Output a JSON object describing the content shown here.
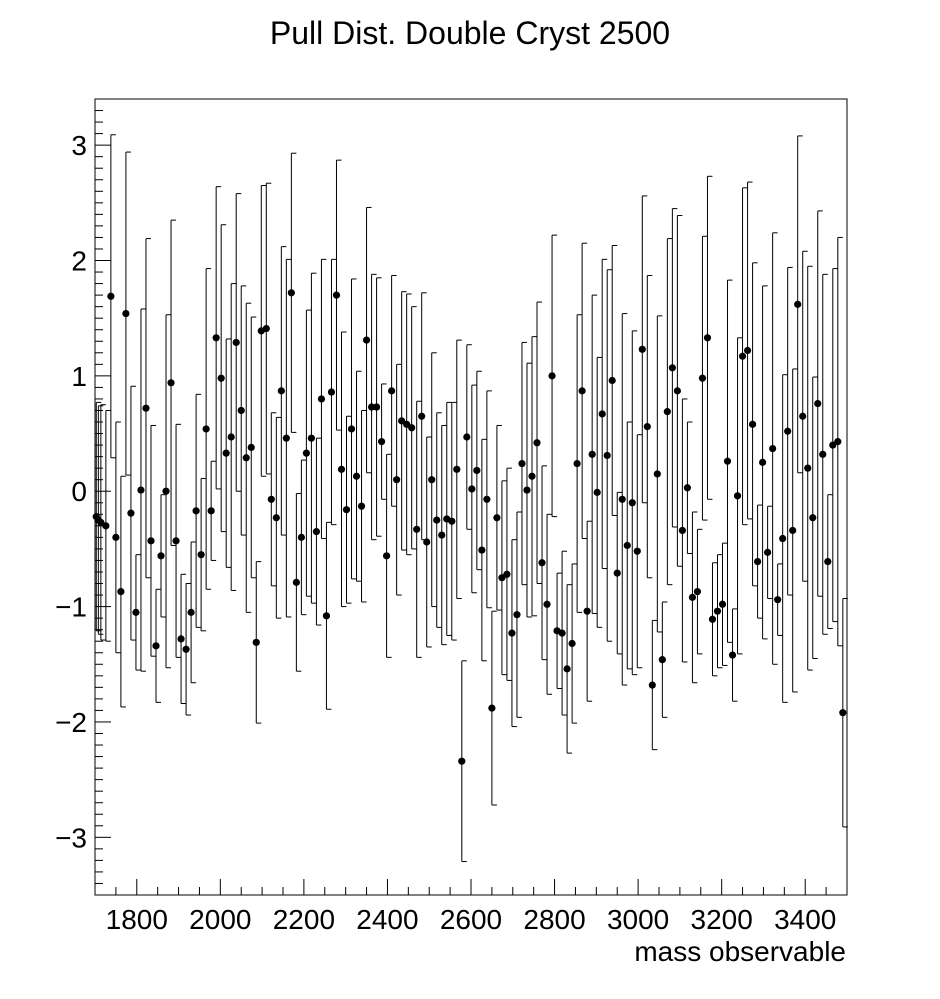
{
  "chart_data": {
    "type": "scatter",
    "title": "Pull Dist. Double Cryst 2500",
    "xlabel": "mass observable",
    "ylabel": "",
    "xlim": [
      1700,
      3500
    ],
    "ylim": [
      -3.5,
      3.4
    ],
    "x_ticks": [
      1800,
      2000,
      2200,
      2400,
      2600,
      2800,
      3000,
      3200,
      3400
    ],
    "y_ticks": [
      -3,
      -2,
      -1,
      0,
      1,
      2,
      3
    ],
    "x_tick_labels": [
      "1800",
      "2000",
      "2200",
      "2400",
      "2600",
      "2800",
      "3000",
      "3200",
      "3400"
    ],
    "y_tick_labels": [
      "−3",
      "−2",
      "−1",
      "0",
      "1",
      "2",
      "3"
    ],
    "grid": false,
    "legend": "none",
    "marker_color": "#000000",
    "error_bars": "y (±1 approx)",
    "series": [
      {
        "x": [
          1703,
          1708,
          1714,
          1726,
          1738,
          1750,
          1762,
          1774,
          1786,
          1798,
          1810,
          1822,
          1834,
          1846,
          1858,
          1870,
          1882,
          1894,
          1906,
          1918,
          1930,
          1942,
          1954,
          1966,
          1978,
          1990,
          2002,
          2014,
          2026,
          2038,
          2050,
          2062,
          2074,
          2086,
          2098,
          2110,
          2122,
          2134,
          2146,
          2158,
          2170,
          2182,
          2194,
          2206,
          2218,
          2230,
          2242,
          2254,
          2266,
          2278,
          2290,
          2302,
          2314,
          2326,
          2338,
          2350,
          2362,
          2374,
          2386,
          2398,
          2410,
          2422,
          2434,
          2446,
          2458,
          2470,
          2482,
          2494,
          2506,
          2518,
          2530,
          2542,
          2554,
          2566,
          2578,
          2590,
          2602,
          2614,
          2626,
          2638,
          2650,
          2662,
          2674,
          2686,
          2698,
          2710,
          2722,
          2734,
          2746,
          2758,
          2770,
          2782,
          2794,
          2806,
          2818,
          2830,
          2842,
          2854,
          2866,
          2878,
          2890,
          2902,
          2914,
          2926,
          2938,
          2950,
          2962,
          2974,
          2986,
          2998,
          3010,
          3022,
          3034,
          3046,
          3058,
          3070,
          3082,
          3094,
          3106,
          3118,
          3130,
          3142,
          3154,
          3166,
          3178,
          3190,
          3202,
          3214,
          3226,
          3238,
          3250,
          3262,
          3274,
          3286,
          3298,
          3310,
          3322,
          3334,
          3346,
          3358,
          3370,
          3382,
          3394,
          3406,
          3418,
          3430,
          3442,
          3454,
          3466,
          3478,
          3490
        ],
        "y": [
          -0.22,
          -0.25,
          -0.27,
          -0.3,
          1.69,
          -0.4,
          -0.87,
          1.54,
          -0.19,
          -1.05,
          0.01,
          0.72,
          -0.43,
          -1.34,
          -0.56,
          0.0,
          0.94,
          -0.43,
          -1.28,
          -1.37,
          -1.05,
          -0.17,
          -0.55,
          0.54,
          -0.17,
          1.33,
          0.98,
          0.33,
          0.47,
          1.29,
          0.7,
          0.29,
          0.38,
          -1.31,
          1.39,
          1.41,
          -0.07,
          -0.23,
          0.87,
          0.46,
          1.72,
          -0.79,
          -0.4,
          0.33,
          0.46,
          -0.35,
          0.8,
          -1.08,
          0.86,
          1.7,
          0.19,
          -0.16,
          0.54,
          0.13,
          -0.13,
          1.31,
          0.73,
          0.73,
          0.43,
          -0.56,
          0.87,
          0.1,
          0.61,
          0.58,
          0.55,
          -0.33,
          0.65,
          -0.44,
          0.1,
          -0.25,
          -0.38,
          -0.24,
          -0.26,
          0.19,
          -2.34,
          0.47,
          0.02,
          0.18,
          -0.51,
          -0.07,
          -1.88,
          -0.23,
          -0.75,
          -0.72,
          -1.23,
          -1.07,
          0.24,
          0.01,
          0.13,
          0.42,
          -0.62,
          -0.98,
          1.0,
          -1.21,
          -1.23,
          -1.54,
          -1.32,
          0.24,
          0.87,
          -1.04,
          0.32,
          -0.01,
          0.67,
          0.31,
          0.96,
          -0.71,
          -0.07,
          -0.47,
          -0.1,
          -0.52,
          1.23,
          0.56,
          -1.68,
          0.15,
          -1.46,
          0.69,
          1.07,
          0.87,
          -0.34,
          0.03,
          -0.92,
          -0.87,
          0.98,
          1.33,
          -1.11,
          -1.04,
          -0.98,
          0.26,
          -1.42,
          -0.04,
          1.17,
          1.22,
          0.58,
          -0.61,
          0.25,
          -0.53,
          0.37,
          -0.94,
          -0.41,
          0.52,
          -0.34,
          1.62,
          0.65,
          0.2,
          -0.23,
          0.76,
          0.32,
          -0.61,
          0.4,
          0.43,
          -1.92
        ],
        "err": [
          0.99,
          0.99,
          1.02,
          1.0,
          1.4,
          1.0,
          1.0,
          1.4,
          1.1,
          0.5,
          1.57,
          1.47,
          1.0,
          0.49,
          0.53,
          1.53,
          1.41,
          1.01,
          0.56,
          0.57,
          0.61,
          1.01,
          0.66,
          1.39,
          0.43,
          1.31,
          1.33,
          0.99,
          1.33,
          1.29,
          1.08,
          1.34,
          1.13,
          0.7,
          1.26,
          1.26,
          0.75,
          0.87,
          1.25,
          1.55,
          1.21,
          0.77,
          0.67,
          1.24,
          1.43,
          0.81,
          1.21,
          0.81,
          1.15,
          1.17,
          1.19,
          0.81,
          1.3,
          0.91,
          0.83,
          1.15,
          1.15,
          1.12,
          0.5,
          0.88,
          1.0,
          1.0,
          1.12,
          1.13,
          1.05,
          1.11,
          1.07,
          0.91,
          1.1,
          0.93,
          0.95,
          1.01,
          1.03,
          1.12,
          0.87,
          0.8,
          0.9,
          0.86,
          0.96,
          0.94,
          0.84,
          0.8,
          0.84,
          0.92,
          0.81,
          0.89,
          1.05,
          1.1,
          1.21,
          1.22,
          0.84,
          0.78,
          1.22,
          0.5,
          0.71,
          0.73,
          0.69,
          1.29,
          1.28,
          0.78,
          1.38,
          1.17,
          1.34,
          1.61,
          1.17,
          0.7,
          1.61,
          1.07,
          1.49,
          1.01,
          1.33,
          1.31,
          0.56,
          1.37,
          0.5,
          1.5,
          1.38,
          1.52,
          1.14,
          0.57,
          0.74,
          0.54,
          1.23,
          1.4,
          0.49,
          0.49,
          0.53,
          1.57,
          0.4,
          1.37,
          1.46,
          1.46,
          1.4,
          0.49,
          1.53,
          0.4,
          1.87,
          0.31,
          1.42,
          1.42,
          1.4,
          1.46,
          1.43,
          1.75,
          1.22,
          1.67,
          1.56,
          0.58,
          1.53,
          1.77,
          0.99
        ]
      }
    ]
  }
}
